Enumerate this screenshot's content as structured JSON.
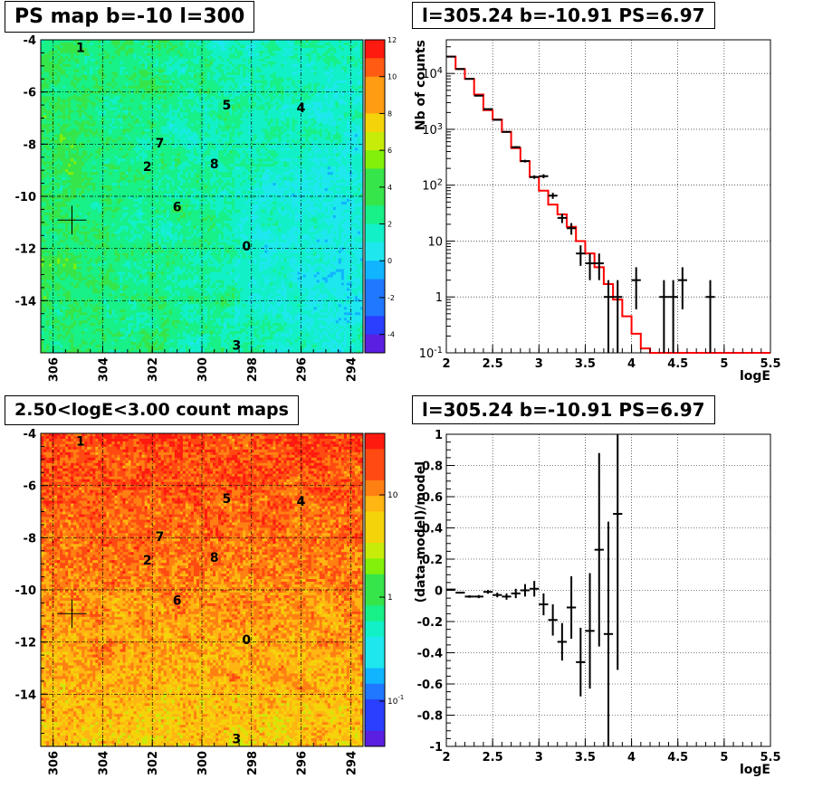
{
  "panels": {
    "ps_map": {
      "title": "PS map b=-10 l=300",
      "yticks": [
        "-4",
        "-6",
        "-8",
        "-10",
        "-12",
        "-14"
      ],
      "xticks": [
        "306",
        "304",
        "302",
        "300",
        "298",
        "296",
        "294"
      ],
      "colorbar_ticks": [
        "12",
        "10",
        "8",
        "6",
        "4",
        "2",
        "0",
        "-2",
        "-4"
      ],
      "sources": [
        {
          "label": "1",
          "l": 304.9,
          "b": -4.3
        },
        {
          "label": "5",
          "l": 299.0,
          "b": -6.5
        },
        {
          "label": "4",
          "l": 296.0,
          "b": -6.6
        },
        {
          "label": "7",
          "l": 301.7,
          "b": -7.95
        },
        {
          "label": "2",
          "l": 302.2,
          "b": -8.85
        },
        {
          "label": "8",
          "l": 299.5,
          "b": -8.75
        },
        {
          "label": "6",
          "l": 301.0,
          "b": -10.4
        },
        {
          "label": "0",
          "l": 298.2,
          "b": -11.9
        },
        {
          "label": "3",
          "l": 298.6,
          "b": -15.7
        }
      ],
      "marker": {
        "l": 305.24,
        "b": -10.91
      }
    },
    "count_map": {
      "title": "2.50<logE<3.00 count maps",
      "yticks": [
        "-4",
        "-6",
        "-8",
        "-10",
        "-12",
        "-14"
      ],
      "xticks": [
        "306",
        "304",
        "302",
        "300",
        "298",
        "296",
        "294"
      ],
      "colorbar_ticks": [
        "10",
        "1",
        "10^-1"
      ],
      "sources": [
        {
          "label": "1",
          "l": 304.9,
          "b": -4.3
        },
        {
          "label": "5",
          "l": 299.0,
          "b": -6.5
        },
        {
          "label": "4",
          "l": 296.0,
          "b": -6.6
        },
        {
          "label": "7",
          "l": 301.7,
          "b": -7.95
        },
        {
          "label": "2",
          "l": 302.2,
          "b": -8.85
        },
        {
          "label": "8",
          "l": 299.5,
          "b": -8.75
        },
        {
          "label": "6",
          "l": 301.0,
          "b": -10.4
        },
        {
          "label": "0",
          "l": 298.2,
          "b": -11.9
        },
        {
          "label": "3",
          "l": 298.6,
          "b": -15.7
        }
      ],
      "marker": {
        "l": 305.24,
        "b": -10.91
      }
    },
    "spectrum": {
      "title": "l=305.24 b=-10.91 PS=6.97",
      "ylabel": "Nb of counts",
      "xlabel": "logE",
      "xticks": [
        "2",
        "2.5",
        "3",
        "3.5",
        "4",
        "4.5",
        "5",
        "5.5"
      ],
      "yticks": [
        "10^-1",
        "1",
        "10",
        "10^2",
        "10^3",
        "10^4"
      ]
    },
    "residual": {
      "title": "l=305.24 b=-10.91 PS=6.97",
      "ylabel": "(data-model)/model",
      "xlabel": "logE",
      "xticks": [
        "2",
        "2.5",
        "3",
        "3.5",
        "4",
        "4.5",
        "5",
        "5.5"
      ],
      "yticks": [
        "1",
        "0.8",
        "0.6",
        "0.4",
        "0.2",
        "0",
        "-0.2",
        "-0.4",
        "-0.6",
        "-0.8",
        "-1"
      ]
    }
  },
  "chart_data": [
    {
      "type": "heatmap",
      "title": "PS map b=-10 l=300",
      "xlim": [
        306.5,
        293.5
      ],
      "ylim": [
        -16,
        -4
      ],
      "zlim": [
        -5,
        12
      ],
      "grid": true
    },
    {
      "type": "heatmap",
      "title": "2.50<logE<3.00 count maps",
      "xlim": [
        306.5,
        293.5
      ],
      "ylim": [
        -16,
        -4
      ],
      "zscale": "log",
      "grid": true
    },
    {
      "type": "line",
      "title": "l=305.24 b=-10.91 PS=6.97",
      "xlabel": "logE",
      "ylabel": "Nb of counts",
      "xlim": [
        2,
        5.5
      ],
      "ylim": [
        0.1,
        40000
      ],
      "yscale": "log",
      "grid": true,
      "series": [
        {
          "kind": "histogram",
          "color": "#ff0000",
          "bin_width": 0.1,
          "x": [
            2.05,
            2.15,
            2.25,
            2.35,
            2.45,
            2.55,
            2.65,
            2.75,
            2.85,
            2.95,
            3.05,
            3.15,
            3.25,
            3.35,
            3.45,
            3.55,
            3.65,
            3.75,
            3.85,
            3.95,
            4.05,
            4.15,
            4.25,
            4.35,
            4.45,
            4.55,
            4.65,
            4.75,
            4.85,
            4.95,
            5.05,
            5.15,
            5.25,
            5.35,
            5.45
          ],
          "values": [
            20000,
            12000,
            8000,
            4200,
            2200,
            1500,
            900,
            460,
            270,
            140,
            80,
            45,
            30,
            18,
            10,
            6,
            3.4,
            1.7,
            0.9,
            0.45,
            0.22,
            0.12,
            0.1,
            0.1,
            0.1,
            0.1,
            0.1,
            0.1,
            0.1,
            0.1,
            0.1,
            0.1,
            0.1,
            0.1,
            0.1
          ]
        },
        {
          "kind": "errorbars",
          "color": "#000000",
          "points": [
            {
              "x": 2.05,
              "y": 20000,
              "lo": 19800,
              "hi": 20200
            },
            {
              "x": 2.15,
              "y": 12000,
              "lo": 11850,
              "hi": 12150
            },
            {
              "x": 2.25,
              "y": 8000,
              "lo": 7900,
              "hi": 8100
            },
            {
              "x": 2.35,
              "y": 4000,
              "lo": 3930,
              "hi": 4070
            },
            {
              "x": 2.45,
              "y": 2300,
              "lo": 2250,
              "hi": 2350
            },
            {
              "x": 2.55,
              "y": 1480,
              "lo": 1440,
              "hi": 1520
            },
            {
              "x": 2.65,
              "y": 900,
              "lo": 870,
              "hi": 930
            },
            {
              "x": 2.75,
              "y": 480,
              "lo": 460,
              "hi": 500
            },
            {
              "x": 2.85,
              "y": 270,
              "lo": 255,
              "hi": 285
            },
            {
              "x": 2.95,
              "y": 140,
              "lo": 130,
              "hi": 150
            },
            {
              "x": 3.05,
              "y": 145,
              "lo": 133,
              "hi": 157
            },
            {
              "x": 3.15,
              "y": 65,
              "lo": 57,
              "hi": 73
            },
            {
              "x": 3.25,
              "y": 26,
              "lo": 21,
              "hi": 31
            },
            {
              "x": 3.35,
              "y": 17,
              "lo": 13,
              "hi": 21
            },
            {
              "x": 3.45,
              "y": 6,
              "lo": 3.6,
              "hi": 8.4
            },
            {
              "x": 3.55,
              "y": 4,
              "lo": 2,
              "hi": 6
            },
            {
              "x": 3.65,
              "y": 4,
              "lo": 2,
              "hi": 6
            },
            {
              "x": 3.75,
              "y": 1,
              "lo": 0.1,
              "hi": 2
            },
            {
              "x": 3.85,
              "y": 1,
              "lo": 0.1,
              "hi": 2
            },
            {
              "x": 4.05,
              "y": 2,
              "lo": 0.6,
              "hi": 3.4
            },
            {
              "x": 4.35,
              "y": 1,
              "lo": 0.1,
              "hi": 2
            },
            {
              "x": 4.45,
              "y": 1,
              "lo": 0.1,
              "hi": 2
            },
            {
              "x": 4.55,
              "y": 2,
              "lo": 0.6,
              "hi": 3.4
            },
            {
              "x": 4.85,
              "y": 1,
              "lo": 0.1,
              "hi": 2
            }
          ]
        }
      ]
    },
    {
      "type": "scatter",
      "title": "l=305.24 b=-10.91 PS=6.97",
      "xlabel": "logE",
      "ylabel": "(data-model)/model",
      "xlim": [
        2,
        5.5
      ],
      "ylim": [
        -1,
        1
      ],
      "grid": true,
      "series": [
        {
          "kind": "errorbars",
          "color": "#000000",
          "points": [
            {
              "x": 2.05,
              "y": 0.005,
              "err": 0.005
            },
            {
              "x": 2.15,
              "y": -0.015,
              "err": 0.006
            },
            {
              "x": 2.25,
              "y": -0.04,
              "err": 0.008
            },
            {
              "x": 2.35,
              "y": -0.04,
              "err": 0.01
            },
            {
              "x": 2.45,
              "y": -0.01,
              "err": 0.012
            },
            {
              "x": 2.55,
              "y": -0.03,
              "err": 0.015
            },
            {
              "x": 2.65,
              "y": -0.04,
              "err": 0.02
            },
            {
              "x": 2.75,
              "y": -0.02,
              "err": 0.03
            },
            {
              "x": 2.85,
              "y": 0.0,
              "err": 0.04
            },
            {
              "x": 2.95,
              "y": 0.01,
              "err": 0.05
            },
            {
              "x": 3.05,
              "y": -0.09,
              "err": 0.07
            },
            {
              "x": 3.15,
              "y": -0.19,
              "err": 0.1
            },
            {
              "x": 3.25,
              "y": -0.33,
              "err": 0.12
            },
            {
              "x": 3.35,
              "y": -0.11,
              "err": 0.2
            },
            {
              "x": 3.45,
              "y": -0.46,
              "err": 0.22
            },
            {
              "x": 3.55,
              "y": -0.26,
              "err": 0.37
            },
            {
              "x": 3.65,
              "y": 0.26,
              "err": 0.62
            },
            {
              "x": 3.75,
              "y": -0.28,
              "err": 0.72
            },
            {
              "x": 3.85,
              "y": 0.49,
              "err": 1.0
            }
          ]
        }
      ]
    }
  ]
}
